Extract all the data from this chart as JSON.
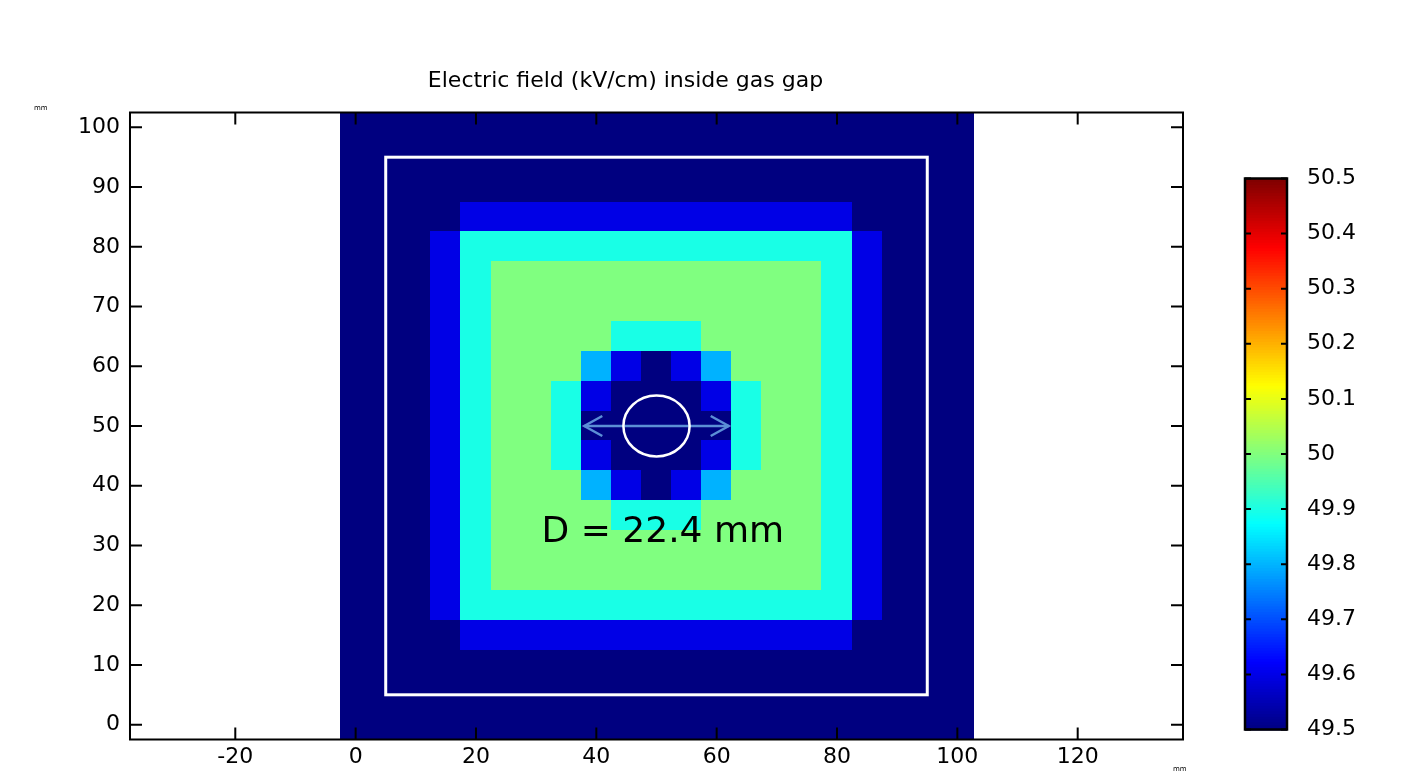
{
  "chart_data": {
    "type": "heatmap",
    "title": "Electric field (kV/cm) inside gas gap",
    "xlabel": "mm",
    "ylabel": "mm",
    "clim": [
      49.5,
      50.5
    ],
    "cticks": [
      49.5,
      49.6,
      49.7,
      49.8,
      49.9,
      50,
      50.1,
      50.2,
      50.3,
      50.4,
      50.5
    ],
    "annotations": [
      "D = 22.4 mm"
    ],
    "categories": [
      null,
      null,
      null,
      "-20",
      null,
      null,
      null,
      "0",
      null,
      null,
      null,
      "20",
      null,
      null,
      null,
      "40",
      null,
      null,
      null,
      "60",
      null,
      null,
      null,
      "80",
      null,
      null,
      null,
      "100",
      null,
      null,
      null,
      "120",
      null,
      null,
      null
    ],
    "y_categories": [
      "100",
      null,
      "90",
      null,
      "80",
      null,
      "70",
      null,
      "60",
      null,
      "50",
      null,
      "40",
      null,
      "30",
      null,
      "20",
      null,
      "10",
      null,
      "0"
    ],
    "cells": [
      [
        null,
        null,
        null,
        null,
        null,
        null,
        null,
        49.5,
        49.5,
        49.5,
        49.5,
        49.5,
        49.5,
        49.5,
        49.5,
        49.5,
        49.5,
        49.5,
        49.5,
        49.5,
        49.5,
        49.5,
        49.5,
        49.5,
        49.5,
        49.5,
        49.5,
        49.5,
        null,
        null,
        null,
        null,
        null,
        null,
        null
      ],
      [
        null,
        null,
        null,
        null,
        null,
        null,
        null,
        49.5,
        49.5,
        49.5,
        49.5,
        49.5,
        49.5,
        49.5,
        49.5,
        49.5,
        49.5,
        49.5,
        49.5,
        49.5,
        49.5,
        49.5,
        49.5,
        49.5,
        49.5,
        49.5,
        49.5,
        49.5,
        null,
        null,
        null,
        null,
        null,
        null,
        null
      ],
      [
        null,
        null,
        null,
        null,
        null,
        null,
        null,
        49.5,
        49.5,
        49.5,
        49.5,
        49.5,
        49.5,
        49.5,
        49.5,
        49.5,
        49.5,
        49.5,
        49.5,
        49.5,
        49.5,
        49.5,
        49.5,
        49.5,
        49.5,
        49.5,
        49.5,
        49.5,
        null,
        null,
        null,
        null,
        null,
        null,
        null
      ],
      [
        null,
        null,
        null,
        null,
        null,
        null,
        null,
        49.5,
        49.5,
        49.5,
        49.5,
        49.6,
        49.6,
        49.6,
        49.6,
        49.6,
        49.6,
        49.6,
        49.6,
        49.6,
        49.6,
        49.6,
        49.6,
        49.6,
        49.5,
        49.5,
        49.5,
        49.5,
        null,
        null,
        null,
        null,
        null,
        null,
        null
      ],
      [
        null,
        null,
        null,
        null,
        null,
        null,
        null,
        49.5,
        49.5,
        49.5,
        49.6,
        49.9,
        49.9,
        49.9,
        49.9,
        49.9,
        49.9,
        49.9,
        49.9,
        49.9,
        49.9,
        49.9,
        49.9,
        49.9,
        49.6,
        49.5,
        49.5,
        49.5,
        null,
        null,
        null,
        null,
        null,
        null,
        null
      ],
      [
        null,
        null,
        null,
        null,
        null,
        null,
        null,
        49.5,
        49.5,
        49.5,
        49.6,
        49.9,
        50,
        50,
        50,
        50,
        50,
        50,
        50,
        50,
        50,
        50,
        50,
        49.9,
        49.6,
        49.5,
        49.5,
        49.5,
        null,
        null,
        null,
        null,
        null,
        null,
        null
      ],
      [
        null,
        null,
        null,
        null,
        null,
        null,
        null,
        49.5,
        49.5,
        49.5,
        49.6,
        49.9,
        50,
        50,
        50,
        50,
        50,
        50,
        50,
        50,
        50,
        50,
        50,
        49.9,
        49.6,
        49.5,
        49.5,
        49.5,
        null,
        null,
        null,
        null,
        null,
        null,
        null
      ],
      [
        null,
        null,
        null,
        null,
        null,
        null,
        null,
        49.5,
        49.5,
        49.5,
        49.6,
        49.9,
        50,
        50,
        50,
        50,
        49.9,
        49.9,
        49.9,
        50,
        50,
        50,
        50,
        49.9,
        49.6,
        49.5,
        49.5,
        49.5,
        null,
        null,
        null,
        null,
        null,
        null,
        null
      ],
      [
        null,
        null,
        null,
        null,
        null,
        null,
        null,
        49.5,
        49.5,
        49.5,
        49.6,
        49.9,
        50,
        50,
        50,
        49.8,
        49.6,
        49.5,
        49.6,
        49.8,
        50,
        50,
        50,
        49.9,
        49.6,
        49.5,
        49.5,
        49.5,
        null,
        null,
        null,
        null,
        null,
        null,
        null
      ],
      [
        null,
        null,
        null,
        null,
        null,
        null,
        null,
        49.5,
        49.5,
        49.5,
        49.6,
        49.9,
        50,
        50,
        49.9,
        49.6,
        49.5,
        49.5,
        49.5,
        49.6,
        49.9,
        50,
        50,
        49.9,
        49.6,
        49.5,
        49.5,
        49.5,
        null,
        null,
        null,
        null,
        null,
        null,
        null
      ],
      [
        null,
        null,
        null,
        null,
        null,
        null,
        null,
        49.5,
        49.5,
        49.5,
        49.6,
        49.9,
        50,
        50,
        49.9,
        49.5,
        49.5,
        49.5,
        49.5,
        49.5,
        49.9,
        50,
        50,
        49.9,
        49.6,
        49.5,
        49.5,
        49.5,
        null,
        null,
        null,
        null,
        null,
        null,
        null
      ],
      [
        null,
        null,
        null,
        null,
        null,
        null,
        null,
        49.5,
        49.5,
        49.5,
        49.6,
        49.9,
        50,
        50,
        49.9,
        49.6,
        49.5,
        49.5,
        49.5,
        49.6,
        49.9,
        50,
        50,
        49.9,
        49.6,
        49.5,
        49.5,
        49.5,
        null,
        null,
        null,
        null,
        null,
        null,
        null
      ],
      [
        null,
        null,
        null,
        null,
        null,
        null,
        null,
        49.5,
        49.5,
        49.5,
        49.6,
        49.9,
        50,
        50,
        50,
        49.8,
        49.6,
        49.5,
        49.6,
        49.8,
        50,
        50,
        50,
        49.9,
        49.6,
        49.5,
        49.5,
        49.5,
        null,
        null,
        null,
        null,
        null,
        null,
        null
      ],
      [
        null,
        null,
        null,
        null,
        null,
        null,
        null,
        49.5,
        49.5,
        49.5,
        49.6,
        49.9,
        50,
        50,
        50,
        50,
        49.9,
        49.9,
        49.9,
        50,
        50,
        50,
        50,
        49.9,
        49.6,
        49.5,
        49.5,
        49.5,
        null,
        null,
        null,
        null,
        null,
        null,
        null
      ],
      [
        null,
        null,
        null,
        null,
        null,
        null,
        null,
        49.5,
        49.5,
        49.5,
        49.6,
        49.9,
        50,
        50,
        50,
        50,
        50,
        50,
        50,
        50,
        50,
        50,
        50,
        49.9,
        49.6,
        49.5,
        49.5,
        49.5,
        null,
        null,
        null,
        null,
        null,
        null,
        null
      ],
      [
        null,
        null,
        null,
        null,
        null,
        null,
        null,
        49.5,
        49.5,
        49.5,
        49.6,
        49.9,
        50,
        50,
        50,
        50,
        50,
        50,
        50,
        50,
        50,
        50,
        50,
        49.9,
        49.6,
        49.5,
        49.5,
        49.5,
        null,
        null,
        null,
        null,
        null,
        null,
        null
      ],
      [
        null,
        null,
        null,
        null,
        null,
        null,
        null,
        49.5,
        49.5,
        49.5,
        49.6,
        49.9,
        49.9,
        49.9,
        49.9,
        49.9,
        49.9,
        49.9,
        49.9,
        49.9,
        49.9,
        49.9,
        49.9,
        49.9,
        49.6,
        49.5,
        49.5,
        49.5,
        null,
        null,
        null,
        null,
        null,
        null,
        null
      ],
      [
        null,
        null,
        null,
        null,
        null,
        null,
        null,
        49.5,
        49.5,
        49.5,
        49.5,
        49.6,
        49.6,
        49.6,
        49.6,
        49.6,
        49.6,
        49.6,
        49.6,
        49.6,
        49.6,
        49.6,
        49.6,
        49.6,
        49.5,
        49.5,
        49.5,
        49.5,
        null,
        null,
        null,
        null,
        null,
        null,
        null
      ],
      [
        null,
        null,
        null,
        null,
        null,
        null,
        null,
        49.5,
        49.5,
        49.5,
        49.5,
        49.5,
        49.5,
        49.5,
        49.5,
        49.5,
        49.5,
        49.5,
        49.5,
        49.5,
        49.5,
        49.5,
        49.5,
        49.5,
        49.5,
        49.5,
        49.5,
        49.5,
        null,
        null,
        null,
        null,
        null,
        null,
        null
      ],
      [
        null,
        null,
        null,
        null,
        null,
        null,
        null,
        49.5,
        49.5,
        49.5,
        49.5,
        49.5,
        49.5,
        49.5,
        49.5,
        49.5,
        49.5,
        49.5,
        49.5,
        49.5,
        49.5,
        49.5,
        49.5,
        49.5,
        49.5,
        49.5,
        49.5,
        49.5,
        null,
        null,
        null,
        null,
        null,
        null,
        null
      ],
      [
        null,
        null,
        null,
        null,
        null,
        null,
        null,
        49.5,
        49.5,
        49.5,
        49.5,
        49.5,
        49.5,
        49.5,
        49.5,
        49.5,
        49.5,
        49.5,
        49.5,
        49.5,
        49.5,
        49.5,
        49.5,
        49.5,
        49.5,
        49.5,
        49.5,
        49.5,
        null,
        null,
        null,
        null,
        null,
        null,
        null
      ]
    ]
  }
}
